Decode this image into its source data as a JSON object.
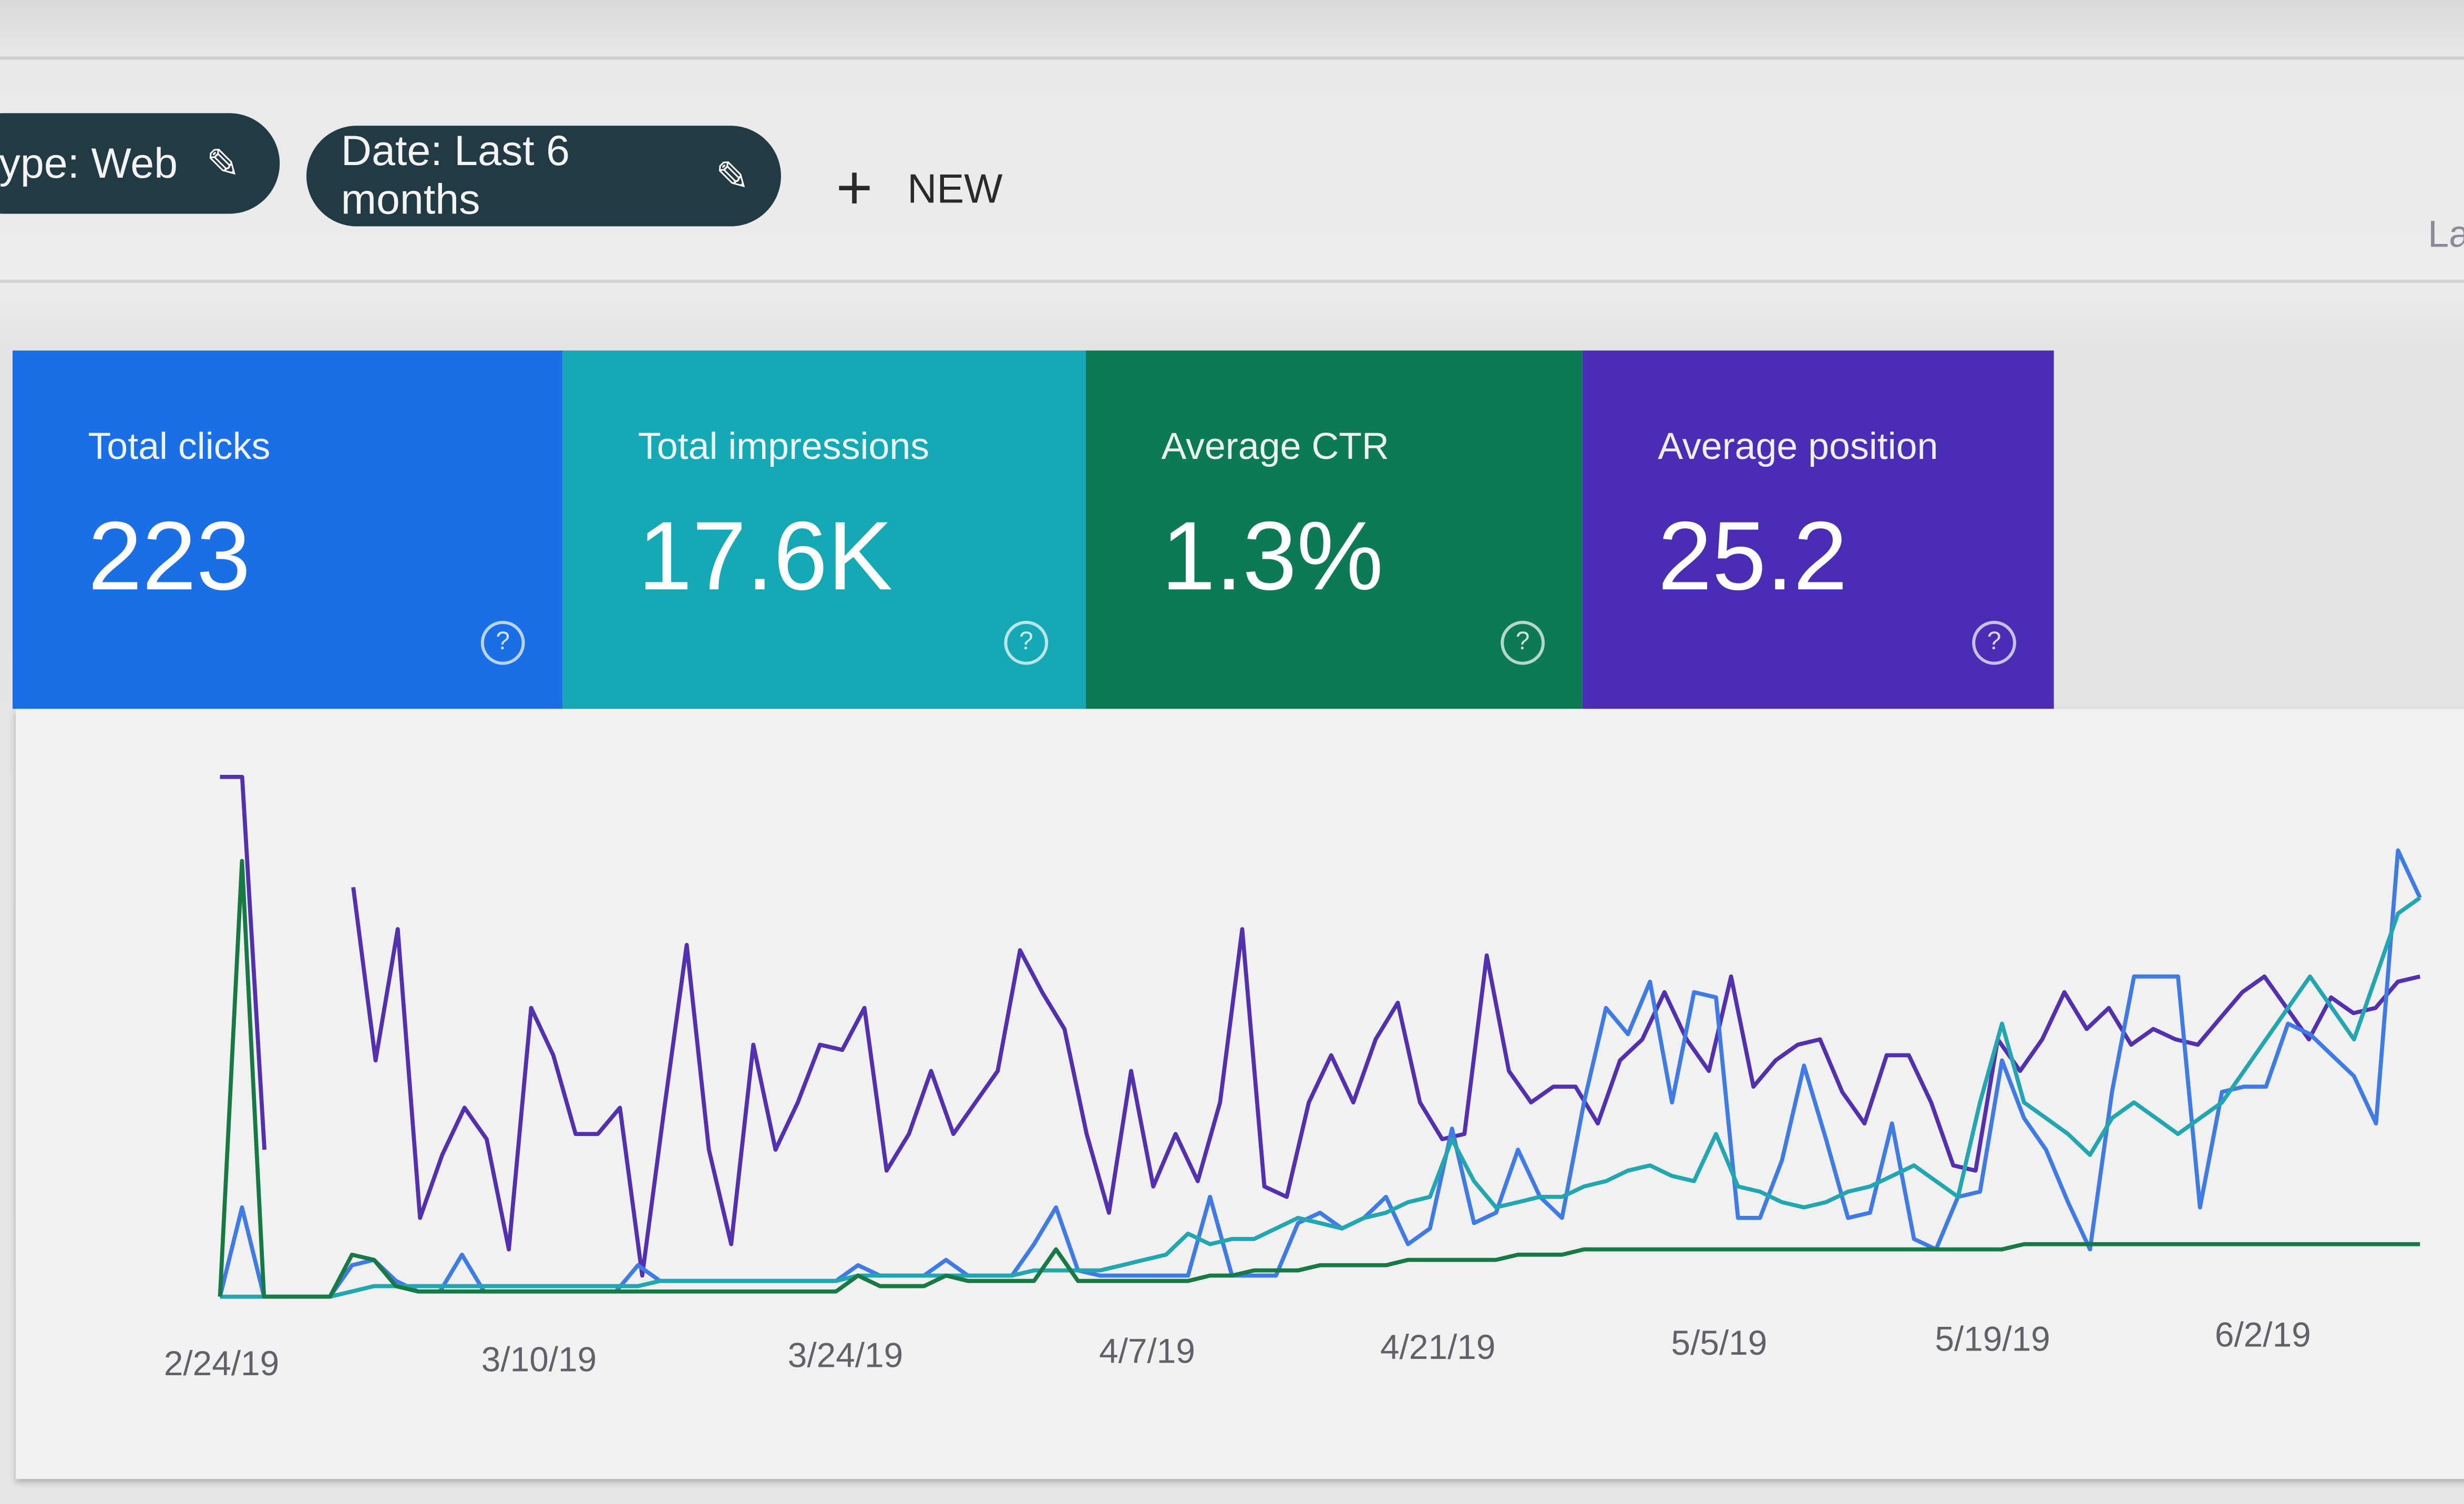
{
  "filters": {
    "type_chip": "type: Web",
    "date_chip": "Date: Last 6 months",
    "new_label": "NEW",
    "right_edge_text": "La"
  },
  "metrics": [
    {
      "label": "Total clicks",
      "value": "223",
      "color": "#1a6fe6"
    },
    {
      "label": "Total impressions",
      "value": "17.6K",
      "color": "#15a8b5"
    },
    {
      "label": "Average CTR",
      "value": "1.3%",
      "color": "#0b7a55"
    },
    {
      "label": "Average position",
      "value": "25.2",
      "color": "#4a2db5"
    }
  ],
  "chart_data": {
    "type": "line",
    "x_ticks": [
      "2/24/19",
      "3/10/19",
      "3/24/19",
      "4/7/19",
      "4/21/19",
      "5/5/19",
      "5/19/19",
      "6/2/19"
    ],
    "grid": false,
    "series": [
      {
        "metric": "Average position",
        "color": "#5230b0",
        "values": [
          99,
          99,
          28,
          null,
          null,
          null,
          78,
          45,
          70,
          15,
          27,
          36,
          30,
          9,
          55,
          46,
          31,
          31,
          36,
          4,
          36,
          67,
          28,
          10,
          48,
          28,
          37,
          48,
          47,
          55,
          24,
          31,
          43,
          31,
          37,
          43,
          66,
          58,
          51,
          31,
          16,
          43,
          21,
          31,
          22,
          37,
          70,
          21,
          19,
          37,
          46,
          37,
          49,
          56,
          37,
          30,
          31,
          65,
          43,
          37,
          40,
          40,
          33,
          45,
          49,
          58,
          49,
          43,
          61,
          40,
          45,
          48,
          49,
          39,
          33,
          46,
          46,
          37,
          25,
          24,
          49,
          43,
          49,
          58,
          51,
          55,
          48,
          51,
          49,
          48,
          53,
          58,
          61,
          55,
          49,
          57,
          54,
          55,
          60,
          61
        ]
      },
      {
        "metric": "Total clicks",
        "color": "#3f7be6",
        "values": [
          0,
          17,
          0,
          0,
          0,
          0,
          6,
          7,
          3,
          1,
          1,
          8,
          1,
          1,
          1,
          1,
          1,
          1,
          1,
          6,
          3,
          3,
          3,
          3,
          3,
          3,
          3,
          3,
          3,
          6,
          4,
          4,
          4,
          7,
          4,
          4,
          4,
          10,
          17,
          5,
          4,
          4,
          4,
          4,
          4,
          19,
          4,
          4,
          4,
          14,
          16,
          13,
          15,
          19,
          10,
          13,
          32,
          14,
          16,
          28,
          19,
          15,
          37,
          55,
          50,
          60,
          37,
          58,
          57,
          15,
          15,
          26,
          44,
          30,
          15,
          16,
          33,
          11,
          9,
          19,
          20,
          45,
          34,
          28,
          18,
          9,
          39,
          61,
          61,
          61,
          17,
          39,
          40,
          40,
          52,
          50,
          46,
          42,
          33,
          85,
          76
        ]
      },
      {
        "metric": "Total impressions",
        "color": "#22a6b0",
        "values": [
          0,
          0,
          0,
          0,
          0,
          0,
          1,
          2,
          2,
          2,
          2,
          2,
          2,
          2,
          2,
          2,
          2,
          2,
          2,
          2,
          3,
          3,
          3,
          3,
          3,
          3,
          3,
          3,
          3,
          4,
          4,
          4,
          4,
          4,
          4,
          4,
          4,
          5,
          5,
          5,
          5,
          6,
          7,
          8,
          12,
          10,
          11,
          11,
          13,
          15,
          14,
          13,
          15,
          16,
          18,
          19,
          30,
          22,
          17,
          18,
          19,
          19,
          21,
          22,
          24,
          25,
          23,
          22,
          31,
          21,
          20,
          18,
          17,
          18,
          20,
          21,
          23,
          25,
          22,
          19,
          37,
          52,
          37,
          34,
          31,
          27,
          34,
          37,
          34,
          31,
          34,
          37,
          43,
          49,
          55,
          61,
          55,
          49,
          61,
          73,
          76
        ]
      },
      {
        "metric": "Average CTR",
        "color": "#177a45",
        "values": [
          0,
          83,
          0,
          0,
          0,
          0,
          8,
          7,
          2,
          1,
          1,
          1,
          1,
          1,
          1,
          1,
          1,
          1,
          1,
          1,
          1,
          1,
          1,
          1,
          1,
          1,
          1,
          1,
          1,
          4,
          2,
          2,
          2,
          4,
          3,
          3,
          3,
          3,
          9,
          3,
          3,
          3,
          3,
          3,
          3,
          4,
          4,
          5,
          5,
          5,
          6,
          6,
          6,
          6,
          7,
          7,
          7,
          7,
          7,
          8,
          8,
          8,
          9,
          9,
          9,
          9,
          9,
          9,
          9,
          9,
          9,
          9,
          9,
          9,
          9,
          9,
          9,
          9,
          9,
          9,
          9,
          9,
          10,
          10,
          10,
          10,
          10,
          10,
          10,
          10,
          10,
          10,
          10,
          10,
          10,
          10,
          10,
          10,
          10,
          10,
          10
        ]
      }
    ]
  }
}
